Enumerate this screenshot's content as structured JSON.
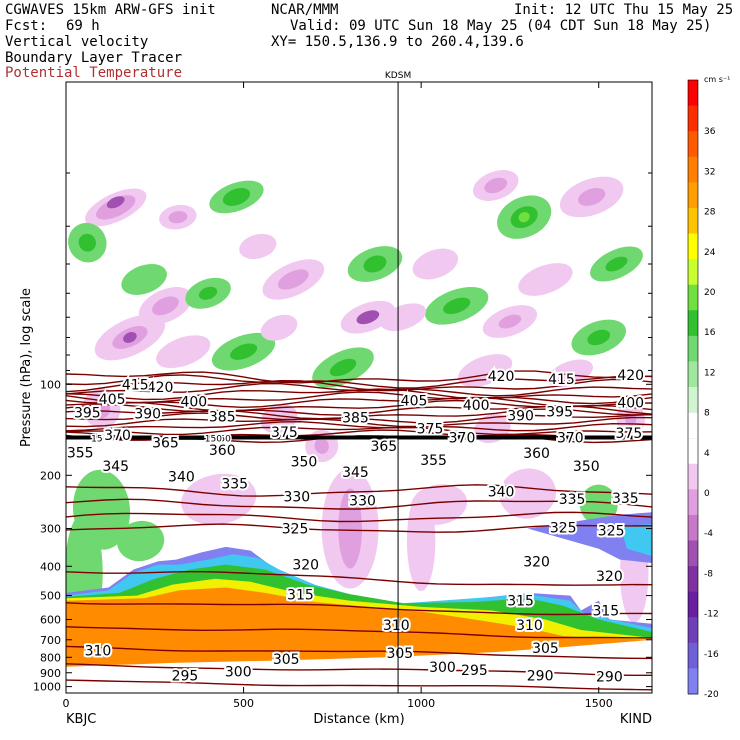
{
  "header": {
    "model": "CGWAVES 15km ARW-GFS init",
    "org": "NCAR/MMM",
    "init": "Init: 12 UTC Thu 15 May 25",
    "fcst_label": "Fcst:",
    "fcst_value": "69 h",
    "valid": "Valid: 09 UTC Sun 18 May 25 (04 CDT Sun 18 May 25)",
    "field1": "Vertical velocity",
    "xy": "XY= 150.5,136.9 to 260.4,139.6",
    "field2": "Boundary Layer Tracer",
    "field3": "Potential Temperature",
    "field3_color": "#b03030"
  },
  "chart_data": {
    "type": "heatmap",
    "ylabel": "Pressure (hPa), log scale",
    "xlabel": "Distance (km)",
    "y_scale": "log",
    "xlim": [
      0,
      1650
    ],
    "ylim": [
      1050,
      10
    ],
    "x_ticks": [
      0,
      500,
      1000,
      1500
    ],
    "y_ticks": [
      100,
      200,
      300,
      400,
      500,
      600,
      700,
      800,
      900,
      1000
    ],
    "left_station": "KBJC",
    "right_station": "KIND",
    "mid_station": "KDSM",
    "mid_station_x_km": 935,
    "tropopause_label": "150",
    "colorbar": {
      "unit": "cm s⁻¹",
      "labels": [
        "36",
        "32",
        "28",
        "24",
        "20",
        "16",
        "12",
        "8",
        "4",
        "0",
        "-4",
        "-8",
        "-12",
        "-16",
        "-20"
      ],
      "colors": [
        "#ff0000",
        "#ff2e00",
        "#ff5a00",
        "#ff8000",
        "#ff9e00",
        "#ffc400",
        "#ffff00",
        "#c8ff30",
        "#70e040",
        "#30c030",
        "#70d870",
        "#a0e8a0",
        "#d0f5d0",
        "#ffffff",
        "#ffffff",
        "#f0c8f0",
        "#e0a0e0",
        "#c878c8",
        "#a050b0",
        "#8030a0",
        "#6820a0",
        "#7040b8",
        "#7060d8",
        "#8080f0"
      ]
    },
    "theta_labels": [
      {
        "v": "420",
        "x": 265,
        "p": 102
      },
      {
        "v": "420",
        "x": 1225,
        "p": 94
      },
      {
        "v": "420",
        "x": 1590,
        "p": 93
      },
      {
        "v": "415",
        "x": 195,
        "p": 100
      },
      {
        "v": "415",
        "x": 1395,
        "p": 96
      },
      {
        "v": "405",
        "x": 130,
        "p": 112
      },
      {
        "v": "405",
        "x": 980,
        "p": 113
      },
      {
        "v": "400",
        "x": 360,
        "p": 114
      },
      {
        "v": "400",
        "x": 1155,
        "p": 117
      },
      {
        "v": "400",
        "x": 1590,
        "p": 115
      },
      {
        "v": "395",
        "x": 60,
        "p": 124
      },
      {
        "v": "395",
        "x": 1390,
        "p": 123
      },
      {
        "v": "390",
        "x": 230,
        "p": 125
      },
      {
        "v": "390",
        "x": 1280,
        "p": 127
      },
      {
        "v": "385",
        "x": 440,
        "p": 128
      },
      {
        "v": "385",
        "x": 815,
        "p": 129
      },
      {
        "v": "375",
        "x": 615,
        "p": 144
      },
      {
        "v": "375",
        "x": 1025,
        "p": 140
      },
      {
        "v": "375",
        "x": 1585,
        "p": 145
      },
      {
        "v": "370",
        "x": 145,
        "p": 147
      },
      {
        "v": "370",
        "x": 1115,
        "p": 150
      },
      {
        "v": "370",
        "x": 1420,
        "p": 150
      },
      {
        "v": "365",
        "x": 280,
        "p": 156
      },
      {
        "v": "365",
        "x": 895,
        "p": 160
      },
      {
        "v": "360",
        "x": 440,
        "p": 165
      },
      {
        "v": "360",
        "x": 1325,
        "p": 169
      },
      {
        "v": "355",
        "x": 40,
        "p": 168
      },
      {
        "v": "355",
        "x": 1035,
        "p": 178
      },
      {
        "v": "350",
        "x": 670,
        "p": 180
      },
      {
        "v": "350",
        "x": 1465,
        "p": 186
      },
      {
        "v": "345",
        "x": 140,
        "p": 186
      },
      {
        "v": "345",
        "x": 815,
        "p": 195
      },
      {
        "v": "340",
        "x": 325,
        "p": 202
      },
      {
        "v": "340",
        "x": 1225,
        "p": 226
      },
      {
        "v": "335",
        "x": 475,
        "p": 213
      },
      {
        "v": "335",
        "x": 1425,
        "p": 240
      },
      {
        "v": "335",
        "x": 1575,
        "p": 238
      },
      {
        "v": "330",
        "x": 650,
        "p": 235
      },
      {
        "v": "330",
        "x": 835,
        "p": 242
      },
      {
        "v": "325",
        "x": 645,
        "p": 300
      },
      {
        "v": "325",
        "x": 1400,
        "p": 298
      },
      {
        "v": "325",
        "x": 1535,
        "p": 305
      },
      {
        "v": "320",
        "x": 675,
        "p": 395
      },
      {
        "v": "320",
        "x": 1325,
        "p": 385
      },
      {
        "v": "320",
        "x": 1530,
        "p": 430
      },
      {
        "v": "315",
        "x": 660,
        "p": 495
      },
      {
        "v": "315",
        "x": 1280,
        "p": 520
      },
      {
        "v": "315",
        "x": 1520,
        "p": 560
      },
      {
        "v": "310",
        "x": 90,
        "p": 760
      },
      {
        "v": "310",
        "x": 930,
        "p": 625
      },
      {
        "v": "310",
        "x": 1305,
        "p": 625
      },
      {
        "v": "305",
        "x": 620,
        "p": 810
      },
      {
        "v": "305",
        "x": 940,
        "p": 775
      },
      {
        "v": "305",
        "x": 1350,
        "p": 745
      },
      {
        "v": "300",
        "x": 485,
        "p": 890
      },
      {
        "v": "300",
        "x": 1060,
        "p": 860
      },
      {
        "v": "295",
        "x": 335,
        "p": 920
      },
      {
        "v": "295",
        "x": 1150,
        "p": 880
      },
      {
        "v": "290",
        "x": 1335,
        "p": 920
      },
      {
        "v": "290",
        "x": 1530,
        "p": 925
      }
    ]
  }
}
